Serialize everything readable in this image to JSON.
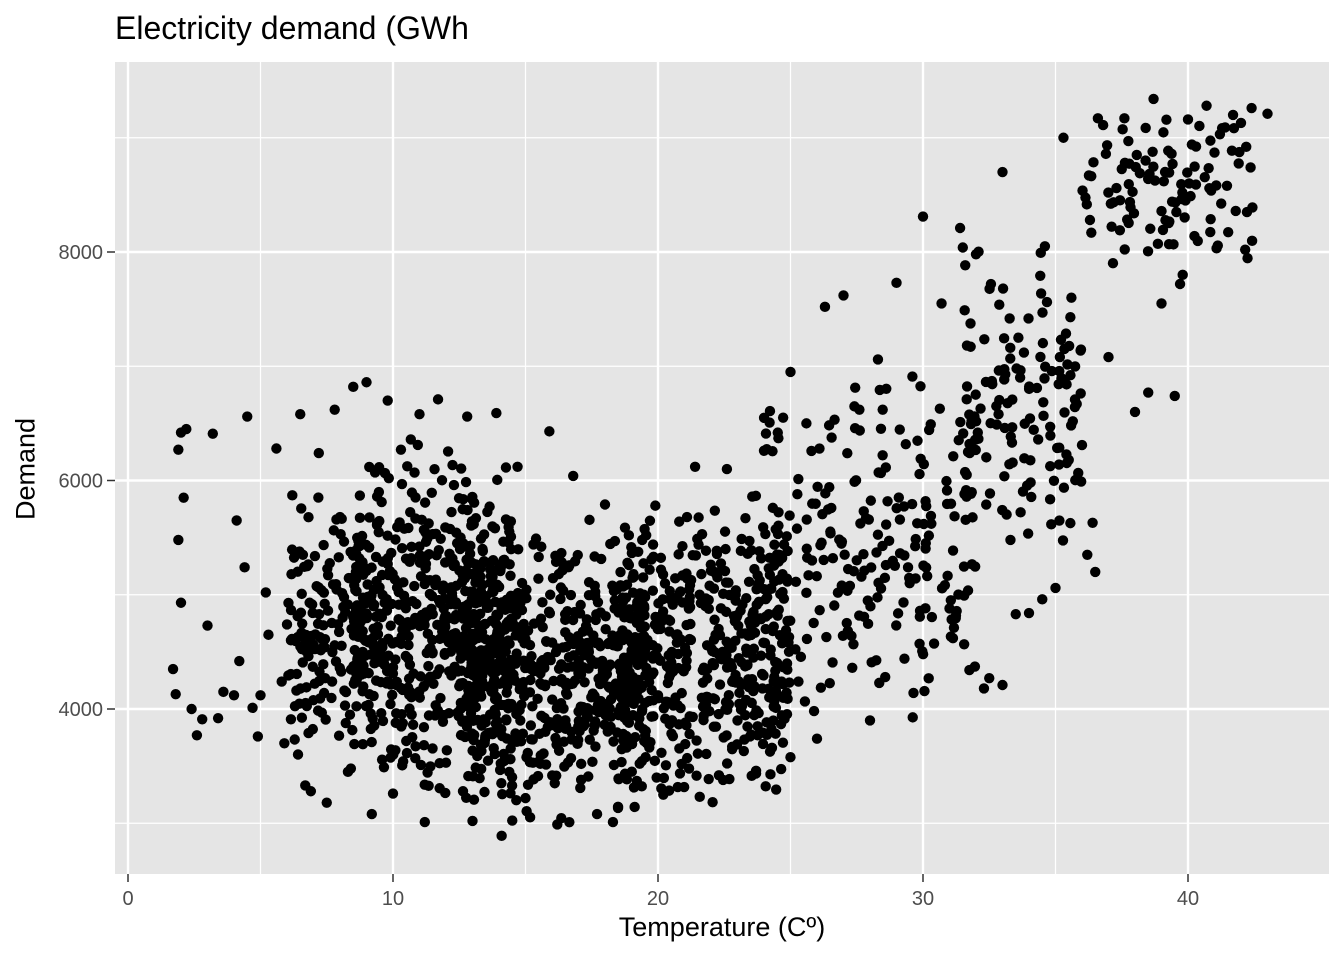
{
  "chart_data": {
    "type": "scatter",
    "title": "Electricity demand (GWh",
    "xlabel": "Temperature (Cº)",
    "ylabel": "Demand",
    "xlim": [
      0,
      45
    ],
    "ylim": [
      2800,
      9500
    ],
    "x_ticks": [
      0,
      10,
      20,
      30,
      40
    ],
    "y_ticks": [
      4000,
      6000,
      8000
    ],
    "x_minor": [
      5,
      15,
      25,
      35
    ],
    "y_minor": [
      3000,
      5000,
      7000,
      9000
    ],
    "grid": true,
    "panel_color": "#e5e5e5",
    "grid_color": "#ffffff",
    "point_color": "#000000",
    "series": [
      {
        "points": [
          [
            1.7,
            4350
          ],
          [
            1.8,
            4130
          ],
          [
            2.0,
            6420
          ],
          [
            2.1,
            5850
          ],
          [
            2.0,
            4930
          ],
          [
            2.4,
            4000
          ],
          [
            2.6,
            3770
          ],
          [
            2.8,
            3910
          ],
          [
            3.0,
            4730
          ],
          [
            3.2,
            6410
          ],
          [
            3.4,
            3920
          ],
          [
            3.6,
            4150
          ],
          [
            4.1,
            5650
          ],
          [
            4.2,
            4420
          ],
          [
            4.4,
            5240
          ],
          [
            4.5,
            6560
          ],
          [
            4.7,
            4010
          ],
          [
            4.9,
            3760
          ],
          [
            5.2,
            5020
          ],
          [
            5.3,
            4650
          ],
          [
            5.6,
            6280
          ],
          [
            5.8,
            4240
          ],
          [
            5.9,
            3700
          ],
          [
            6.2,
            5870
          ],
          [
            6.5,
            6580
          ],
          [
            6.6,
            5350
          ],
          [
            6.7,
            4580
          ],
          [
            6.9,
            3280
          ],
          [
            7.2,
            6240
          ],
          [
            7.3,
            5040
          ],
          [
            7.4,
            4140
          ],
          [
            7.5,
            3180
          ],
          [
            7.8,
            6620
          ],
          [
            8.0,
            5680
          ],
          [
            8.1,
            4800
          ],
          [
            8.3,
            3450
          ],
          [
            8.5,
            6820
          ],
          [
            8.6,
            5200
          ],
          [
            8.8,
            4300
          ],
          [
            9.0,
            6860
          ],
          [
            9.2,
            3080
          ],
          [
            9.4,
            5860
          ],
          [
            9.6,
            4540
          ],
          [
            9.8,
            6700
          ],
          [
            10.0,
            3260
          ],
          [
            10.3,
            6270
          ],
          [
            10.5,
            3720
          ],
          [
            10.7,
            5420
          ],
          [
            11.0,
            6580
          ],
          [
            11.2,
            3010
          ],
          [
            11.5,
            4830
          ],
          [
            11.7,
            6710
          ],
          [
            12.0,
            3530
          ],
          [
            12.3,
            5960
          ],
          [
            12.5,
            4200
          ],
          [
            12.8,
            6560
          ],
          [
            13.0,
            3020
          ],
          [
            13.3,
            5230
          ],
          [
            13.6,
            3790
          ],
          [
            13.9,
            6590
          ],
          [
            14.1,
            2890
          ],
          [
            14.4,
            4570
          ],
          [
            14.7,
            6120
          ],
          [
            15.0,
            3220
          ],
          [
            15.3,
            5440
          ],
          [
            15.6,
            3940
          ],
          [
            15.9,
            6430
          ],
          [
            16.2,
            2990
          ],
          [
            16.5,
            4780
          ],
          [
            16.8,
            6040
          ],
          [
            17.1,
            3380
          ],
          [
            17.4,
            5110
          ],
          [
            17.7,
            3080
          ],
          [
            18.0,
            5790
          ],
          [
            18.3,
            3010
          ],
          [
            18.6,
            4330
          ],
          [
            18.9,
            5520
          ],
          [
            19.2,
            3370
          ],
          [
            19.5,
            4720
          ],
          [
            19.9,
            5780
          ],
          [
            20.2,
            3250
          ],
          [
            20.5,
            4410
          ],
          [
            20.8,
            5640
          ],
          [
            21.1,
            3570
          ],
          [
            21.4,
            6120
          ],
          [
            21.7,
            4020
          ],
          [
            22.0,
            5210
          ],
          [
            22.3,
            3420
          ],
          [
            22.6,
            6100
          ],
          [
            23.0,
            3900
          ],
          [
            23.3,
            5670
          ],
          [
            23.6,
            4450
          ],
          [
            24.0,
            6260
          ],
          [
            24.3,
            3660
          ],
          [
            24.7,
            5180
          ],
          [
            25.0,
            6950
          ],
          [
            25.3,
            4240
          ],
          [
            25.6,
            6500
          ],
          [
            26.0,
            3740
          ],
          [
            26.3,
            7520
          ],
          [
            26.6,
            5320
          ],
          [
            27.0,
            7620
          ],
          [
            27.3,
            4640
          ],
          [
            27.6,
            6620
          ],
          [
            28.0,
            3900
          ],
          [
            28.3,
            7060
          ],
          [
            28.6,
            5260
          ],
          [
            29.0,
            7730
          ],
          [
            29.3,
            4440
          ],
          [
            29.6,
            6910
          ],
          [
            30.0,
            8310
          ],
          [
            30.3,
            5690
          ],
          [
            30.7,
            7550
          ],
          [
            31.0,
            4880
          ],
          [
            31.4,
            8210
          ],
          [
            31.7,
            6250
          ],
          [
            32.0,
            7980
          ],
          [
            32.3,
            4180
          ],
          [
            32.6,
            6870
          ],
          [
            33.0,
            8700
          ],
          [
            33.3,
            5480
          ],
          [
            33.6,
            7250
          ],
          [
            34.0,
            4840
          ],
          [
            34.3,
            6810
          ],
          [
            34.6,
            8050
          ],
          [
            35.0,
            5060
          ],
          [
            35.3,
            9000
          ],
          [
            35.6,
            7600
          ],
          [
            36.0,
            6310
          ],
          [
            36.3,
            8280
          ],
          [
            36.6,
            9170
          ],
          [
            37.0,
            7080
          ],
          [
            37.3,
            8560
          ],
          [
            37.6,
            9170
          ],
          [
            38.0,
            6600
          ],
          [
            38.4,
            8800
          ],
          [
            38.7,
            9340
          ],
          [
            39.0,
            7550
          ],
          [
            39.4,
            8440
          ],
          [
            39.7,
            7720
          ],
          [
            40.0,
            9160
          ],
          [
            40.3,
            8590
          ],
          [
            40.7,
            9280
          ],
          [
            41.0,
            8870
          ],
          [
            41.4,
            9090
          ],
          [
            41.7,
            9200
          ],
          [
            42.0,
            9130
          ],
          [
            42.4,
            9260
          ],
          [
            43.0,
            9210
          ],
          [
            1.9,
            6270
          ],
          [
            2.2,
            6450
          ],
          [
            1.9,
            5480
          ],
          [
            4.0,
            4120
          ],
          [
            5.0,
            4120
          ],
          [
            6.0,
            4740
          ],
          [
            36.4,
            5630
          ],
          [
            36.2,
            5350
          ],
          [
            36.5,
            5200
          ],
          [
            33.0,
            4210
          ],
          [
            32.5,
            4270
          ],
          [
            38.5,
            6770
          ],
          [
            39.5,
            6740
          ],
          [
            39.8,
            7800
          ],
          [
            35.8,
            6670
          ],
          [
            34.8,
            6470
          ],
          [
            35.5,
            6180
          ],
          [
            34.5,
            4960
          ],
          [
            33.5,
            4830
          ]
        ]
      }
    ]
  }
}
